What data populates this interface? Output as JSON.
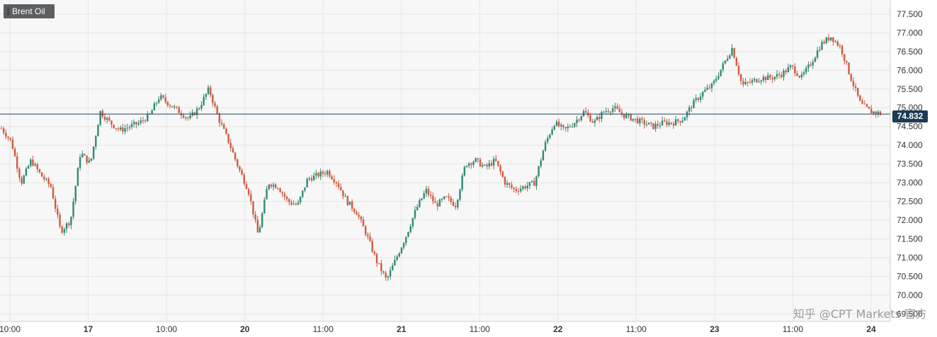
{
  "header": {
    "instrument": "Brent Oil"
  },
  "watermark": "知乎 @CPT Markets 官方",
  "last_price": "74.832",
  "colors": {
    "up": "#2f8a74",
    "down": "#d05a3e",
    "price_line": "#27405c",
    "flag_bg": "#1e3a55"
  },
  "chart_data": {
    "type": "candlestick",
    "title": "Brent Oil",
    "y_ticks": [
      "69.500",
      "70.000",
      "70.500",
      "71.000",
      "71.500",
      "72.000",
      "72.500",
      "73.000",
      "73.500",
      "74.000",
      "74.500",
      "75.000",
      "75.500",
      "76.000",
      "76.500",
      "77.000",
      "77.500"
    ],
    "ylim": [
      69.3,
      77.8
    ],
    "grid": true,
    "x_labels": [
      {
        "label": "10:00",
        "bold": false
      },
      {
        "label": "17",
        "bold": true
      },
      {
        "label": "10:00",
        "bold": false
      },
      {
        "label": "20",
        "bold": true
      },
      {
        "label": "11:00",
        "bold": false
      },
      {
        "label": "21",
        "bold": true
      },
      {
        "label": "11:00",
        "bold": false
      },
      {
        "label": "22",
        "bold": true
      },
      {
        "label": "11:00",
        "bold": false
      },
      {
        "label": "23",
        "bold": true
      },
      {
        "label": "11:00",
        "bold": false
      },
      {
        "label": "24",
        "bold": true
      }
    ],
    "last_price": 74.832,
    "close_path": [
      74.45,
      74.1,
      73.0,
      73.6,
      73.2,
      72.9,
      71.7,
      72.0,
      73.8,
      73.5,
      74.9,
      74.6,
      74.4,
      74.5,
      74.6,
      74.8,
      75.3,
      75.1,
      74.9,
      74.7,
      75.0,
      75.5,
      74.7,
      74.1,
      73.4,
      72.8,
      71.6,
      73.0,
      72.9,
      72.5,
      72.4,
      73.1,
      73.2,
      73.3,
      73.0,
      72.5,
      72.2,
      71.6,
      70.9,
      70.4,
      71.0,
      71.6,
      72.3,
      72.8,
      72.4,
      72.6,
      72.4,
      73.5,
      73.6,
      73.4,
      73.6,
      73.0,
      72.8,
      72.9,
      73.0,
      74.0,
      74.6,
      74.4,
      74.6,
      74.9,
      74.6,
      74.9,
      75.0,
      74.8,
      74.7,
      74.6,
      74.5,
      74.6,
      74.6,
      74.7,
      75.1,
      75.4,
      75.6,
      76.1,
      76.6,
      75.6,
      75.7,
      75.8,
      75.8,
      75.9,
      76.1,
      75.8,
      76.2,
      76.7,
      76.9,
      76.6,
      75.8,
      75.1,
      74.9,
      74.85
    ]
  }
}
